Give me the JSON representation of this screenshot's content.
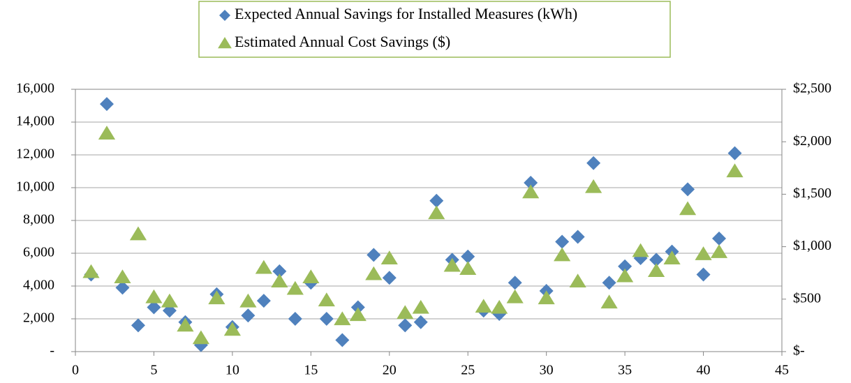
{
  "chart_data": {
    "type": "scatter",
    "x": [
      1,
      2,
      3,
      4,
      5,
      6,
      7,
      8,
      9,
      10,
      11,
      12,
      13,
      14,
      15,
      16,
      17,
      18,
      19,
      20,
      21,
      22,
      23,
      24,
      25,
      26,
      27,
      28,
      29,
      30,
      31,
      32,
      33,
      34,
      35,
      36,
      37,
      38,
      39,
      40,
      41,
      42
    ],
    "series": [
      {
        "name": "Expected Annual Savings for Installed Measures (kWh)",
        "color": "#4f81bd",
        "marker": "diamond",
        "axis": "y",
        "values": [
          4700,
          15100,
          3900,
          1600,
          2700,
          2500,
          1800,
          400,
          3500,
          1500,
          2200,
          3100,
          4900,
          2000,
          4200,
          2000,
          700,
          2700,
          5900,
          4500,
          1600,
          1800,
          9200,
          5600,
          5800,
          2500,
          2300,
          4200,
          10300,
          3700,
          6700,
          7000,
          11500,
          4200,
          5200,
          5700,
          5600,
          6100,
          9900,
          4700,
          6900,
          12100
        ]
      },
      {
        "name": "Estimated Annual Cost Savings ($)",
        "color": "#9bbb59",
        "marker": "triangle",
        "axis": "y2",
        "values": [
          760,
          2080,
          710,
          1120,
          520,
          480,
          250,
          130,
          510,
          210,
          480,
          800,
          670,
          600,
          710,
          490,
          310,
          350,
          740,
          890,
          370,
          420,
          1320,
          820,
          790,
          430,
          420,
          520,
          1520,
          510,
          920,
          670,
          1570,
          470,
          720,
          960,
          770,
          890,
          1360,
          930,
          950,
          1720
        ]
      }
    ],
    "xlim": [
      0,
      45
    ],
    "xticks": [
      0,
      5,
      10,
      15,
      20,
      25,
      30,
      35,
      40,
      45
    ],
    "ylim": [
      0,
      16000
    ],
    "yticks": [
      {
        "value": 0,
        "label": "-"
      },
      {
        "value": 2000,
        "label": "2,000"
      },
      {
        "value": 4000,
        "label": "4,000"
      },
      {
        "value": 6000,
        "label": "6,000"
      },
      {
        "value": 8000,
        "label": "8,000"
      },
      {
        "value": 10000,
        "label": "10,000"
      },
      {
        "value": 12000,
        "label": "12,000"
      },
      {
        "value": 14000,
        "label": "14,000"
      },
      {
        "value": 16000,
        "label": "16,000"
      }
    ],
    "y2lim": [
      0,
      2500
    ],
    "y2ticks": [
      {
        "value": 0,
        "label": "$-"
      },
      {
        "value": 500,
        "label": "$500"
      },
      {
        "value": 1000,
        "label": "$1,000"
      },
      {
        "value": 1500,
        "label": "$1,500"
      },
      {
        "value": 2000,
        "label": "$2,000"
      },
      {
        "value": 2500,
        "label": "$2,500"
      }
    ],
    "grid": true,
    "legend": "top"
  }
}
